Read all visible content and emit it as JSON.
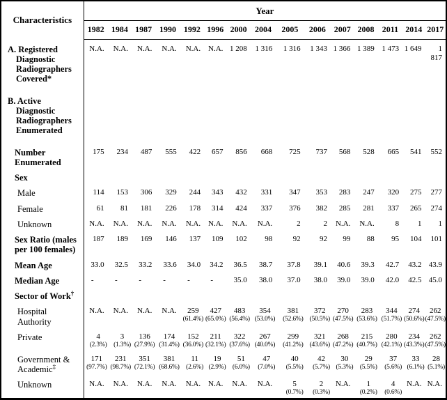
{
  "page": {
    "background_color": "#ffffff",
    "border_color": "#000000"
  },
  "table": {
    "characteristics_header": "Characteristics",
    "year_header": "Year",
    "years": [
      "1982",
      "1984",
      "1987",
      "1990",
      "1992",
      "1996",
      "2000",
      "2004",
      "2005",
      "2006",
      "2007",
      "2008",
      "2011",
      "2014",
      "2017"
    ],
    "rows": [
      {
        "label": "A. Registered\nDiagnostic\nRadiographers\nCovered*",
        "level": "section",
        "cells": [
          "N.A.",
          "N.A.",
          "N.A.",
          "N.A.",
          "N.A.",
          "N.A.",
          "1 208",
          "1 316",
          "1 316",
          "1 343",
          "1 366",
          "1 389",
          "1 473",
          "1 649",
          "1 817"
        ]
      },
      {
        "label": "B. Active Diagnostic\nRadiographers\nEnumerated",
        "level": "section",
        "cells": []
      },
      {
        "label": "Number\nEnumerated",
        "level": "bold",
        "cells": [
          "175",
          "234",
          "487",
          "555",
          "422",
          "657",
          "856",
          "668",
          "725",
          "737",
          "568",
          "528",
          "665",
          "541",
          "552"
        ]
      },
      {
        "label": "Sex",
        "level": "bold",
        "cells": []
      },
      {
        "label": "Male",
        "level": "item",
        "cells": [
          "114",
          "153",
          "306",
          "329",
          "244",
          "343",
          "432",
          "331",
          "347",
          "353",
          "283",
          "247",
          "320",
          "275",
          "277"
        ]
      },
      {
        "label": "Female",
        "level": "item",
        "cells": [
          "61",
          "81",
          "181",
          "226",
          "178",
          "314",
          "424",
          "337",
          "376",
          "382",
          "285",
          "281",
          "337",
          "265",
          "274"
        ]
      },
      {
        "label": "Unknown",
        "level": "item",
        "cells": [
          "N.A.",
          "N.A.",
          "N.A.",
          "N.A.",
          "N.A.",
          "N.A.",
          "N.A.",
          "N.A.",
          "2",
          "2",
          "N.A.",
          "N.A.",
          "8",
          "1",
          "1"
        ]
      },
      {
        "label": "Sex Ratio (males\nper 100 females)",
        "level": "bold",
        "cells": [
          "187",
          "189",
          "169",
          "146",
          "137",
          "109",
          "102",
          "98",
          "92",
          "92",
          "99",
          "88",
          "95",
          "104",
          "101"
        ]
      },
      {
        "label": "Mean Age",
        "level": "bold",
        "cells": [
          "33.0",
          "32.5",
          "33.2",
          "33.6",
          "34.0",
          "34.2",
          "36.5",
          "38.7",
          "37.8",
          "39.1",
          "40.6",
          "39.3",
          "42.7",
          "43.2",
          "43.9"
        ]
      },
      {
        "label": "Median Age",
        "level": "bold",
        "cells": [
          "-",
          "-",
          "-",
          "-",
          "-",
          "-",
          "35.0",
          "38.0",
          "37.0",
          "38.0",
          "39.0",
          "39.0",
          "42.0",
          "42.5",
          "45.0"
        ]
      },
      {
        "label": "Sector of Work",
        "sup": "†",
        "level": "bold",
        "cells": []
      },
      {
        "label": "Hospital\nAuthority",
        "level": "item",
        "cells": [
          "N.A.",
          "N.A.",
          "N.A.",
          "N.A.",
          {
            "n": "259",
            "p": "(61.4%)"
          },
          {
            "n": "427",
            "p": "(65.0%)"
          },
          {
            "n": "483",
            "p": "(56.4%)"
          },
          {
            "n": "354",
            "p": "(53.0%)"
          },
          {
            "n": "381",
            "p": "(52.6%)"
          },
          {
            "n": "372",
            "p": "(50.5%)"
          },
          {
            "n": "270",
            "p": "(47.5%)"
          },
          {
            "n": "283",
            "p": "(53.6%)"
          },
          {
            "n": "344",
            "p": "(51.7%)"
          },
          {
            "n": "274",
            "p": "(50.6%)"
          },
          {
            "n": "262",
            "p": "(47.5%)"
          }
        ]
      },
      {
        "label": "Private",
        "level": "item",
        "cells": [
          {
            "n": "4",
            "p": "(2.3%)"
          },
          {
            "n": "3",
            "p": "(1.3%)"
          },
          {
            "n": "136",
            "p": "(27.9%)"
          },
          {
            "n": "174",
            "p": "(31.4%)"
          },
          {
            "n": "152",
            "p": "(36.0%)"
          },
          {
            "n": "211",
            "p": "(32.1%)"
          },
          {
            "n": "322",
            "p": "(37.6%)"
          },
          {
            "n": "267",
            "p": "(40.0%)"
          },
          {
            "n": "299",
            "p": "(41.2%)"
          },
          {
            "n": "321",
            "p": "(43.6%)"
          },
          {
            "n": "268",
            "p": "(47.2%)"
          },
          {
            "n": "215",
            "p": "(40.7%)"
          },
          {
            "n": "280",
            "p": "(42.1%)"
          },
          {
            "n": "234",
            "p": "(43.3%)"
          },
          {
            "n": "262",
            "p": "(47.5%)"
          }
        ]
      },
      {
        "label": "Government &\nAcademic",
        "sup": "‡",
        "level": "item",
        "cells": [
          {
            "n": "171",
            "p": "(97.7%)"
          },
          {
            "n": "231",
            "p": "(98.7%)"
          },
          {
            "n": "351",
            "p": "(72.1%)"
          },
          {
            "n": "381",
            "p": "(68.6%)"
          },
          {
            "n": "11",
            "p": "(2.6%)"
          },
          {
            "n": "19",
            "p": "(2.9%)"
          },
          {
            "n": "51",
            "p": "(6.0%)"
          },
          {
            "n": "47",
            "p": "(7.0%)"
          },
          {
            "n": "40",
            "p": "(5.5%)"
          },
          {
            "n": "42",
            "p": "(5.7%)"
          },
          {
            "n": "30",
            "p": "(5.3%)"
          },
          {
            "n": "29",
            "p": "(5.5%)"
          },
          {
            "n": "37",
            "p": "(5.6%)"
          },
          {
            "n": "33",
            "p": "(6.1%)"
          },
          {
            "n": "28",
            "p": "(5.1%)"
          }
        ]
      },
      {
        "label": "Unknown",
        "level": "item",
        "cells": [
          "N.A.",
          "N.A.",
          "N.A.",
          "N.A.",
          "N.A.",
          "N.A.",
          "N.A.",
          "N.A.",
          {
            "n": "5",
            "p": "(0.7%)"
          },
          {
            "n": "2",
            "p": "(0.3%)"
          },
          "N.A.",
          {
            "n": "1",
            "p": "(0.2%)"
          },
          {
            "n": "4",
            "p": "(0.6%)"
          },
          "N.A.",
          "N.A."
        ]
      }
    ]
  }
}
